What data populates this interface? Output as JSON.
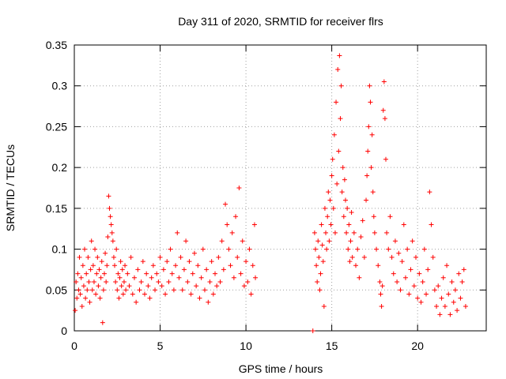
{
  "chart_data": {
    "type": "scatter",
    "title": "Day 311 of 2020, SRMTID for receiver flrs",
    "xlabel": "GPS time / hours",
    "ylabel": "SRMTID / TECUs",
    "xlim": [
      0,
      24
    ],
    "ylim": [
      0,
      0.35
    ],
    "x_ticks": [
      0,
      5,
      10,
      15,
      20
    ],
    "x_tick_labels": [
      "0",
      "5",
      "10",
      "15",
      "20"
    ],
    "y_ticks": [
      0,
      0.05,
      0.1,
      0.15,
      0.2,
      0.25,
      0.3,
      0.35
    ],
    "y_tick_labels": [
      "0",
      "0.05",
      "0.1",
      "0.15",
      "0.2",
      "0.25",
      "0.3",
      "0.35"
    ],
    "grid": true,
    "marker": "+",
    "series": [
      {
        "color": "#ff0000",
        "points": [
          [
            0.05,
            0.025
          ],
          [
            0.1,
            0.06
          ],
          [
            0.15,
            0.04
          ],
          [
            0.2,
            0.07
          ],
          [
            0.25,
            0.05
          ],
          [
            0.3,
            0.09
          ],
          [
            0.35,
            0.045
          ],
          [
            0.4,
            0.065
          ],
          [
            0.45,
            0.03
          ],
          [
            0.5,
            0.08
          ],
          [
            0.55,
            0.055
          ],
          [
            0.6,
            0.1
          ],
          [
            0.65,
            0.04
          ],
          [
            0.7,
            0.07
          ],
          [
            0.75,
            0.05
          ],
          [
            0.8,
            0.09
          ],
          [
            0.85,
            0.06
          ],
          [
            0.9,
            0.035
          ],
          [
            0.95,
            0.075
          ],
          [
            1.0,
            0.11
          ],
          [
            1.05,
            0.05
          ],
          [
            1.1,
            0.08
          ],
          [
            1.15,
            0.06
          ],
          [
            1.2,
            0.1
          ],
          [
            1.25,
            0.045
          ],
          [
            1.3,
            0.07
          ],
          [
            1.35,
            0.09
          ],
          [
            1.4,
            0.055
          ],
          [
            1.45,
            0.075
          ],
          [
            1.5,
            0.04
          ],
          [
            1.55,
            0.065
          ],
          [
            1.6,
            0.085
          ],
          [
            1.65,
            0.01
          ],
          [
            1.7,
            0.05
          ],
          [
            1.75,
            0.07
          ],
          [
            1.8,
            0.095
          ],
          [
            1.85,
            0.06
          ],
          [
            1.9,
            0.08
          ],
          [
            1.95,
            0.115
          ],
          [
            2.0,
            0.165
          ],
          [
            2.05,
            0.15
          ],
          [
            2.1,
            0.14
          ],
          [
            2.15,
            0.13
          ],
          [
            2.2,
            0.12
          ],
          [
            2.25,
            0.11
          ],
          [
            2.3,
            0.09
          ],
          [
            2.35,
            0.08
          ],
          [
            2.4,
            0.06
          ],
          [
            2.45,
            0.1
          ],
          [
            2.5,
            0.05
          ],
          [
            2.55,
            0.07
          ],
          [
            2.6,
            0.04
          ],
          [
            2.65,
            0.065
          ],
          [
            2.7,
            0.085
          ],
          [
            2.75,
            0.055
          ],
          [
            2.8,
            0.075
          ],
          [
            2.85,
            0.045
          ],
          [
            2.9,
            0.06
          ],
          [
            2.95,
            0.08
          ],
          [
            3.0,
            0.05
          ],
          [
            3.1,
            0.07
          ],
          [
            3.2,
            0.055
          ],
          [
            3.3,
            0.09
          ],
          [
            3.4,
            0.045
          ],
          [
            3.5,
            0.065
          ],
          [
            3.6,
            0.035
          ],
          [
            3.7,
            0.075
          ],
          [
            3.8,
            0.05
          ],
          [
            3.9,
            0.06
          ],
          [
            4.0,
            0.085
          ],
          [
            4.1,
            0.045
          ],
          [
            4.2,
            0.07
          ],
          [
            4.3,
            0.055
          ],
          [
            4.4,
            0.04
          ],
          [
            4.5,
            0.065
          ],
          [
            4.6,
            0.08
          ],
          [
            4.7,
            0.05
          ],
          [
            4.8,
            0.07
          ],
          [
            4.9,
            0.06
          ],
          [
            5.0,
            0.09
          ],
          [
            5.1,
            0.055
          ],
          [
            5.2,
            0.075
          ],
          [
            5.3,
            0.045
          ],
          [
            5.4,
            0.085
          ],
          [
            5.5,
            0.06
          ],
          [
            5.6,
            0.1
          ],
          [
            5.7,
            0.07
          ],
          [
            5.8,
            0.05
          ],
          [
            5.9,
            0.08
          ],
          [
            6.0,
            0.12
          ],
          [
            6.1,
            0.065
          ],
          [
            6.2,
            0.09
          ],
          [
            6.3,
            0.05
          ],
          [
            6.4,
            0.075
          ],
          [
            6.5,
            0.11
          ],
          [
            6.6,
            0.06
          ],
          [
            6.7,
            0.085
          ],
          [
            6.8,
            0.045
          ],
          [
            6.9,
            0.07
          ],
          [
            7.0,
            0.095
          ],
          [
            7.1,
            0.055
          ],
          [
            7.2,
            0.08
          ],
          [
            7.3,
            0.04
          ],
          [
            7.4,
            0.065
          ],
          [
            7.5,
            0.1
          ],
          [
            7.6,
            0.05
          ],
          [
            7.7,
            0.075
          ],
          [
            7.8,
            0.035
          ],
          [
            7.9,
            0.06
          ],
          [
            8.0,
            0.085
          ],
          [
            8.1,
            0.045
          ],
          [
            8.2,
            0.07
          ],
          [
            8.3,
            0.055
          ],
          [
            8.4,
            0.09
          ],
          [
            8.5,
            0.06
          ],
          [
            8.6,
            0.11
          ],
          [
            8.7,
            0.075
          ],
          [
            8.8,
            0.155
          ],
          [
            8.9,
            0.13
          ],
          [
            9.0,
            0.1
          ],
          [
            9.1,
            0.08
          ],
          [
            9.2,
            0.12
          ],
          [
            9.3,
            0.065
          ],
          [
            9.4,
            0.14
          ],
          [
            9.5,
            0.09
          ],
          [
            9.6,
            0.175
          ],
          [
            9.7,
            0.07
          ],
          [
            9.8,
            0.11
          ],
          [
            9.9,
            0.055
          ],
          [
            10.0,
            0.085
          ],
          [
            10.1,
            0.06
          ],
          [
            10.2,
            0.1
          ],
          [
            10.3,
            0.045
          ],
          [
            10.4,
            0.08
          ],
          [
            10.5,
            0.13
          ],
          [
            10.55,
            0.065
          ],
          [
            13.9,
            0.0
          ],
          [
            14.0,
            0.12
          ],
          [
            14.05,
            0.1
          ],
          [
            14.1,
            0.08
          ],
          [
            14.15,
            0.06
          ],
          [
            14.2,
            0.11
          ],
          [
            14.25,
            0.09
          ],
          [
            14.3,
            0.05
          ],
          [
            14.35,
            0.07
          ],
          [
            14.4,
            0.13
          ],
          [
            14.45,
            0.105
          ],
          [
            14.5,
            0.085
          ],
          [
            14.55,
            0.03
          ],
          [
            14.6,
            0.15
          ],
          [
            14.65,
            0.12
          ],
          [
            14.7,
            0.1
          ],
          [
            14.75,
            0.14
          ],
          [
            14.8,
            0.17
          ],
          [
            14.85,
            0.11
          ],
          [
            14.9,
            0.16
          ],
          [
            14.95,
            0.13
          ],
          [
            15.0,
            0.19
          ],
          [
            15.05,
            0.21
          ],
          [
            15.1,
            0.15
          ],
          [
            15.15,
            0.24
          ],
          [
            15.2,
            0.12
          ],
          [
            15.25,
            0.28
          ],
          [
            15.3,
            0.18
          ],
          [
            15.35,
            0.32
          ],
          [
            15.4,
            0.22
          ],
          [
            15.45,
            0.337
          ],
          [
            15.5,
            0.26
          ],
          [
            15.55,
            0.3
          ],
          [
            15.6,
            0.17
          ],
          [
            15.65,
            0.2
          ],
          [
            15.7,
            0.14
          ],
          [
            15.75,
            0.185
          ],
          [
            15.8,
            0.16
          ],
          [
            15.85,
            0.12
          ],
          [
            15.9,
            0.15
          ],
          [
            15.95,
            0.1
          ],
          [
            16.0,
            0.13
          ],
          [
            16.05,
            0.085
          ],
          [
            16.1,
            0.11
          ],
          [
            16.15,
            0.145
          ],
          [
            16.2,
            0.09
          ],
          [
            16.3,
            0.12
          ],
          [
            16.4,
            0.08
          ],
          [
            16.5,
            0.1
          ],
          [
            16.6,
            0.065
          ],
          [
            16.7,
            0.115
          ],
          [
            16.8,
            0.135
          ],
          [
            16.9,
            0.09
          ],
          [
            17.0,
            0.16
          ],
          [
            17.05,
            0.19
          ],
          [
            17.1,
            0.22
          ],
          [
            17.15,
            0.25
          ],
          [
            17.2,
            0.3
          ],
          [
            17.25,
            0.28
          ],
          [
            17.3,
            0.2
          ],
          [
            17.35,
            0.24
          ],
          [
            17.4,
            0.17
          ],
          [
            17.45,
            0.14
          ],
          [
            17.5,
            0.12
          ],
          [
            17.6,
            0.1
          ],
          [
            17.7,
            0.08
          ],
          [
            17.8,
            0.06
          ],
          [
            17.85,
            0.045
          ],
          [
            17.9,
            0.03
          ],
          [
            17.95,
            0.055
          ],
          [
            18.0,
            0.27
          ],
          [
            18.05,
            0.305
          ],
          [
            18.1,
            0.26
          ],
          [
            18.15,
            0.21
          ],
          [
            18.2,
            0.12
          ],
          [
            18.3,
            0.1
          ],
          [
            18.4,
            0.14
          ],
          [
            18.5,
            0.09
          ],
          [
            18.6,
            0.07
          ],
          [
            18.7,
            0.11
          ],
          [
            18.8,
            0.06
          ],
          [
            18.9,
            0.095
          ],
          [
            19.0,
            0.05
          ],
          [
            19.1,
            0.085
          ],
          [
            19.2,
            0.13
          ],
          [
            19.3,
            0.065
          ],
          [
            19.4,
            0.1
          ],
          [
            19.5,
            0.045
          ],
          [
            19.6,
            0.075
          ],
          [
            19.7,
            0.11
          ],
          [
            19.8,
            0.055
          ],
          [
            19.9,
            0.09
          ],
          [
            20.0,
            0.04
          ],
          [
            20.1,
            0.07
          ],
          [
            20.2,
            0.035
          ],
          [
            20.3,
            0.06
          ],
          [
            20.4,
            0.1
          ],
          [
            20.5,
            0.045
          ],
          [
            20.6,
            0.075
          ],
          [
            20.7,
            0.17
          ],
          [
            20.8,
            0.13
          ],
          [
            20.9,
            0.09
          ],
          [
            21.0,
            0.05
          ],
          [
            21.1,
            0.03
          ],
          [
            21.2,
            0.055
          ],
          [
            21.3,
            0.02
          ],
          [
            21.4,
            0.04
          ],
          [
            21.5,
            0.065
          ],
          [
            21.6,
            0.03
          ],
          [
            21.7,
            0.08
          ],
          [
            21.8,
            0.045
          ],
          [
            21.9,
            0.02
          ],
          [
            22.0,
            0.06
          ],
          [
            22.1,
            0.035
          ],
          [
            22.2,
            0.05
          ],
          [
            22.3,
            0.025
          ],
          [
            22.4,
            0.07
          ],
          [
            22.5,
            0.04
          ],
          [
            22.6,
            0.06
          ],
          [
            22.7,
            0.075
          ],
          [
            22.8,
            0.03
          ]
        ]
      }
    ]
  }
}
